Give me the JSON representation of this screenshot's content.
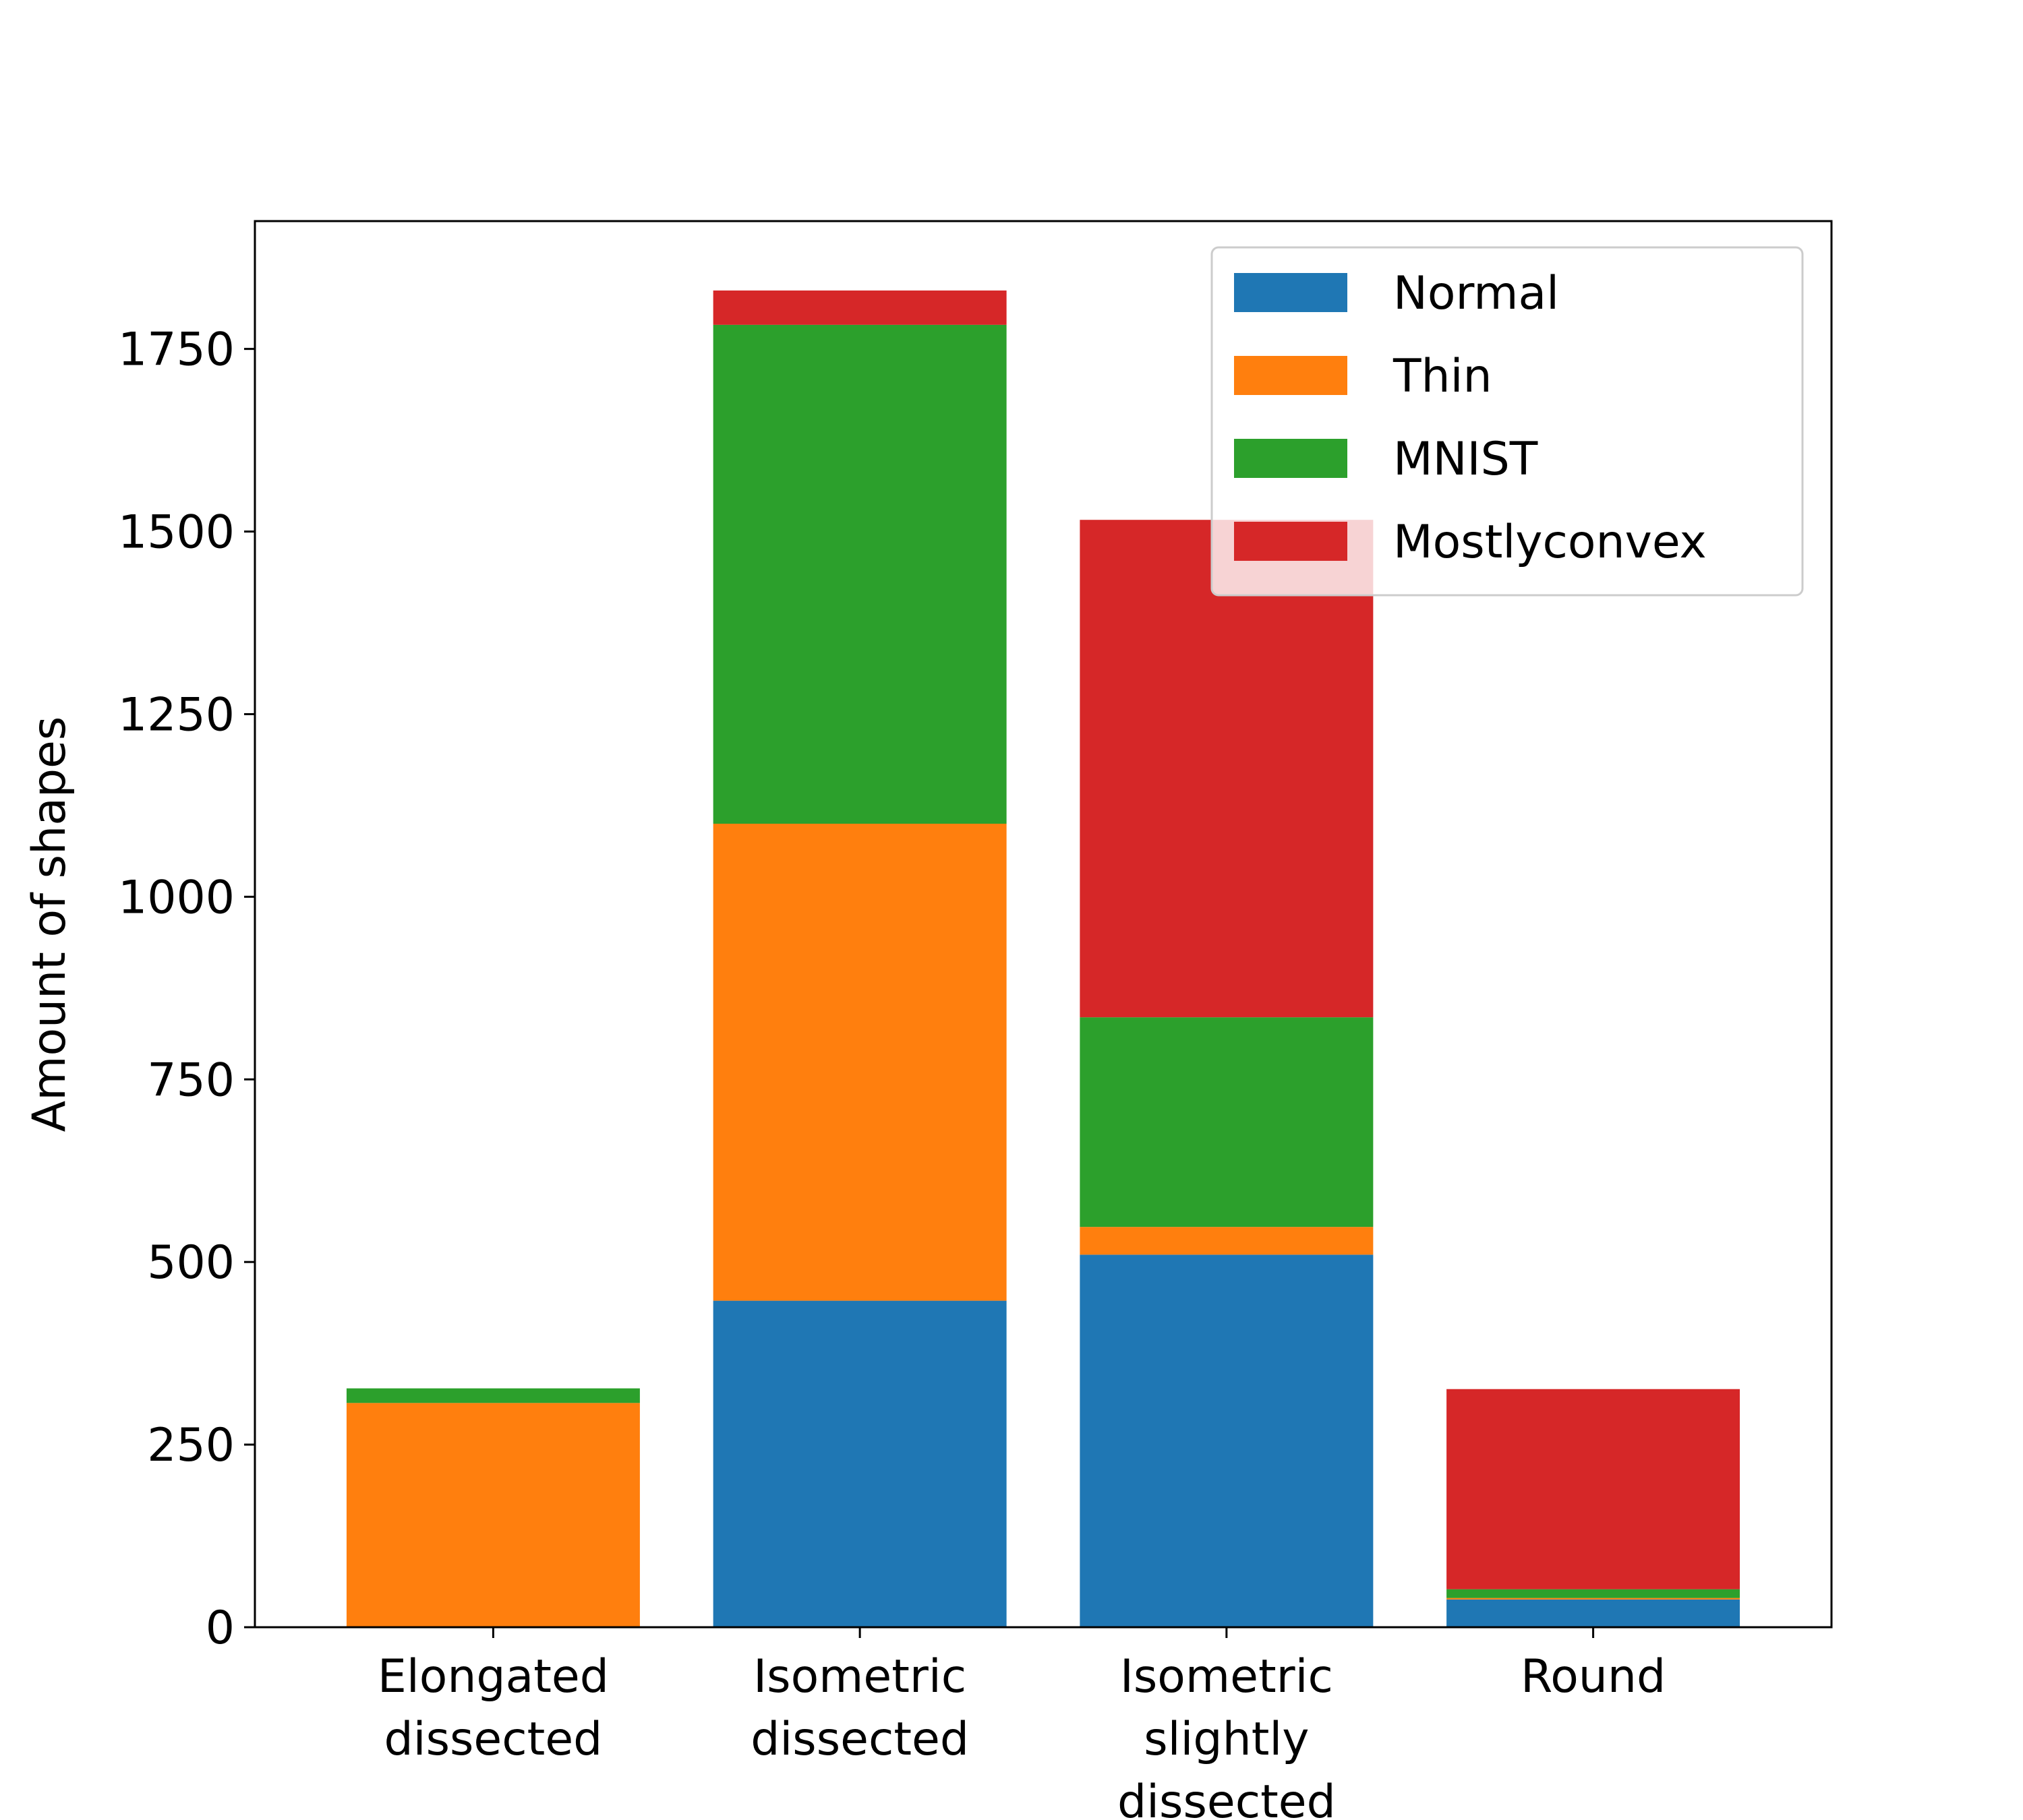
{
  "chart_data": {
    "type": "bar",
    "stacked": true,
    "categories": [
      [
        "Elongated",
        "dissected"
      ],
      [
        "Isometric",
        "dissected"
      ],
      [
        "Isometric",
        "slightly",
        "dissected"
      ],
      [
        "Round"
      ]
    ],
    "series": [
      {
        "name": "Normal",
        "color": "#1f77b4",
        "values": [
          0,
          447,
          510,
          38
        ]
      },
      {
        "name": "Thin",
        "color": "#ff7f0e",
        "values": [
          307,
          653,
          38,
          2
        ]
      },
      {
        "name": "MNIST",
        "color": "#2ca02c",
        "values": [
          20,
          683,
          287,
          12
        ]
      },
      {
        "name": "Mostlyconvex",
        "color": "#d62728",
        "values": [
          0,
          47,
          681,
          274
        ]
      }
    ],
    "ylabel": "Amount of shapes",
    "yticks": [
      "0",
      "250",
      "500",
      "750",
      "1000",
      "1250",
      "1500",
      "1750"
    ],
    "ylim": [
      0,
      1925
    ],
    "legend_position": "top-right",
    "grid": false
  }
}
